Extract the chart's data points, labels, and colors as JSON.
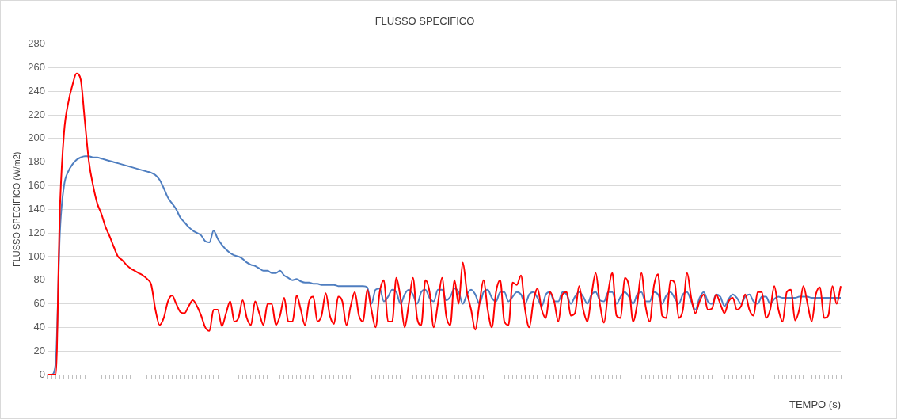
{
  "chart_data": {
    "type": "line",
    "title": "FLUSSO SPECIFICO",
    "xlabel": "TEMPO (s)",
    "ylabel": "FLUSSO SPECIFICO (W/m2)",
    "categories": [
      null,
      null,
      null,
      null,
      null,
      null,
      null,
      null,
      null,
      null,
      null,
      null,
      null,
      null,
      null,
      null,
      null,
      null,
      null,
      null,
      null,
      null,
      null,
      null,
      null,
      null,
      null,
      null,
      null,
      null,
      null,
      null,
      null,
      null,
      null,
      null,
      null,
      null,
      null,
      null,
      null,
      null,
      null,
      null,
      null,
      null,
      null,
      null,
      null,
      null,
      null,
      null,
      null,
      null,
      null,
      null,
      null,
      null,
      null,
      null,
      null,
      null,
      null,
      null,
      null,
      null,
      null,
      null,
      null,
      null,
      null,
      null,
      null,
      null,
      null,
      null,
      null,
      null,
      null,
      null,
      null,
      null,
      null,
      null,
      null,
      null,
      null,
      null,
      null,
      null,
      null,
      null,
      null,
      null,
      null,
      null,
      null,
      null,
      null,
      null,
      null,
      null,
      null,
      null,
      null,
      null,
      null,
      null,
      null,
      null,
      null,
      null,
      null,
      null,
      null,
      null,
      null,
      null,
      null,
      null,
      null,
      null,
      null,
      null,
      null,
      null,
      null,
      null,
      null,
      null,
      null,
      null,
      null,
      null,
      null,
      null,
      null,
      null,
      null,
      null,
      null,
      null,
      null,
      null,
      null,
      null,
      null,
      null,
      null,
      null,
      null,
      null,
      null,
      null,
      null,
      null,
      null,
      null,
      null,
      null,
      null,
      null,
      null,
      null,
      null,
      null,
      null,
      null,
      null,
      null,
      null,
      null,
      null,
      null,
      null,
      null,
      null,
      null,
      null,
      null,
      null,
      null,
      null,
      null,
      null,
      null,
      null,
      null,
      null,
      null,
      null,
      null
    ],
    "series": [
      {
        "color": "#ff0000",
        "values": [
          0,
          0,
          0,
          140,
          205,
          230,
          245,
          255,
          250,
          215,
          180,
          160,
          145,
          136,
          125,
          117,
          108,
          100,
          97,
          93,
          90,
          88,
          86,
          84,
          81,
          76,
          55,
          42,
          48,
          62,
          67,
          60,
          53,
          52,
          58,
          63,
          58,
          50,
          40,
          37,
          55,
          55,
          41,
          52,
          62,
          45,
          48,
          63,
          48,
          42,
          62,
          52,
          42,
          60,
          60,
          42,
          50,
          65,
          45,
          45,
          67,
          55,
          42,
          62,
          66,
          45,
          50,
          69,
          50,
          43,
          66,
          62,
          42,
          58,
          70,
          50,
          45,
          72,
          55,
          40,
          70,
          80,
          45,
          45,
          82,
          65,
          40,
          60,
          82,
          48,
          42,
          80,
          70,
          40,
          60,
          82,
          50,
          42,
          80,
          60,
          95,
          70,
          55,
          38,
          60,
          80,
          55,
          40,
          70,
          80,
          45,
          42,
          78,
          76,
          84,
          55,
          40,
          62,
          73,
          55,
          48,
          70,
          62,
          45,
          68,
          70,
          50,
          52,
          75,
          55,
          45,
          68,
          86,
          60,
          44,
          70,
          86,
          50,
          48,
          82,
          75,
          45,
          60,
          86,
          58,
          45,
          75,
          85,
          50,
          48,
          80,
          78,
          48,
          55,
          86,
          65,
          52,
          62,
          68,
          55,
          56,
          68,
          60,
          52,
          62,
          65,
          55,
          58,
          68,
          55,
          50,
          70,
          70,
          48,
          55,
          75,
          55,
          45,
          70,
          72,
          46,
          55,
          75,
          60,
          45,
          68,
          74,
          48,
          50,
          75,
          60,
          75
        ]
      },
      {
        "color": "#4f7ec0",
        "values": [
          0,
          0,
          10,
          120,
          160,
          172,
          178,
          182,
          184,
          185,
          185,
          184,
          184,
          183,
          182,
          181,
          180,
          179,
          178,
          177,
          176,
          175,
          174,
          173,
          172,
          171,
          169,
          165,
          158,
          150,
          145,
          140,
          133,
          129,
          125,
          122,
          120,
          118,
          113,
          112,
          122,
          115,
          110,
          106,
          103,
          101,
          100,
          98,
          95,
          93,
          92,
          90,
          88,
          88,
          86,
          86,
          88,
          84,
          82,
          80,
          81,
          79,
          78,
          78,
          77,
          77,
          76,
          76,
          76,
          76,
          75,
          75,
          75,
          75,
          75,
          75,
          75,
          74,
          60,
          72,
          73,
          62,
          66,
          72,
          70,
          60,
          68,
          72,
          68,
          60,
          70,
          72,
          65,
          62,
          72,
          72,
          63,
          66,
          73,
          70,
          60,
          68,
          72,
          68,
          60,
          70,
          72,
          65,
          62,
          70,
          70,
          62,
          66,
          70,
          68,
          60,
          68,
          70,
          65,
          58,
          68,
          70,
          62,
          62,
          70,
          68,
          60,
          66,
          70,
          66,
          60,
          68,
          70,
          63,
          62,
          70,
          70,
          60,
          66,
          70,
          66,
          60,
          68,
          70,
          62,
          62,
          70,
          68,
          60,
          67,
          70,
          65,
          60,
          68,
          70,
          62,
          55,
          65,
          70,
          62,
          60,
          68,
          66,
          58,
          64,
          68,
          65,
          60,
          66,
          68,
          62,
          60,
          66,
          66,
          60,
          64,
          66,
          65,
          65,
          65,
          65,
          66,
          66,
          66,
          65,
          65,
          65,
          65,
          65,
          65,
          65,
          65
        ]
      }
    ],
    "ylim": [
      0,
      280
    ],
    "yticks": [
      0,
      20,
      40,
      60,
      80,
      100,
      120,
      140,
      160,
      180,
      200,
      220,
      240,
      260,
      280
    ],
    "grid": "y",
    "legend": false,
    "marker": "none",
    "line_style": "solid"
  }
}
